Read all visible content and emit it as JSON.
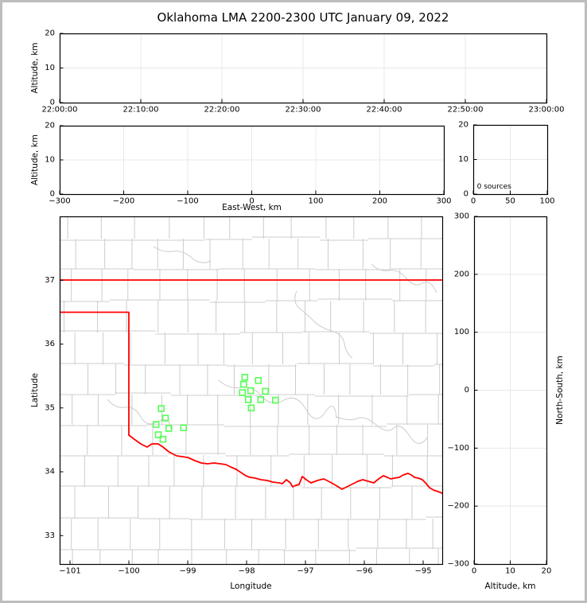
{
  "title": "Oklahoma LMA 2200-2300 UTC January 09, 2022",
  "colors": {
    "state_border": "#ff0000",
    "station_marker": "#55ff55",
    "county_lines": "#cccccc",
    "gridlines": "#e8e8e8",
    "axis": "#000000",
    "page_border": "#bdbdbd"
  },
  "chart_data": [
    {
      "id": "time",
      "type": "scatter",
      "description": "Altitude vs time panel, no lightning sources plotted",
      "xlabel": "",
      "ylabel": "Altitude, km",
      "xlim": [
        0,
        6
      ],
      "xtick_vals": [
        0,
        1,
        2,
        3,
        4,
        5,
        6
      ],
      "xtick_labels": [
        "22:00:00",
        "22:10:00",
        "22:20:00",
        "22:30:00",
        "22:40:00",
        "22:50:00",
        "23:00:00"
      ],
      "ylim": [
        0,
        20
      ],
      "ytick_vals": [
        0,
        10,
        20
      ],
      "ytick_labels": [
        "0",
        "10",
        "20"
      ],
      "grid": true,
      "points": []
    },
    {
      "id": "ew",
      "type": "scatter",
      "description": "Altitude vs East-West distance panel, no sources plotted",
      "xlabel": "East-West, km",
      "ylabel": "Altitude, km",
      "xlim": [
        -300,
        300
      ],
      "xtick_vals": [
        -300,
        -200,
        -100,
        0,
        100,
        200,
        300
      ],
      "xtick_labels": [
        "−300",
        "−200",
        "−100",
        "0",
        "100",
        "200",
        "300"
      ],
      "ylim": [
        0,
        20
      ],
      "ytick_vals": [
        0,
        10,
        20
      ],
      "ytick_labels": [
        "0",
        "10",
        "20"
      ],
      "grid": true,
      "points": []
    },
    {
      "id": "hist",
      "type": "scatter",
      "description": "Source-count vs altitude histogram panel",
      "xlabel": "",
      "ylabel": "",
      "xlim": [
        0,
        100
      ],
      "xtick_vals": [
        0,
        50,
        100
      ],
      "xtick_labels": [
        "0",
        "50",
        "100"
      ],
      "ylim": [
        0,
        20
      ],
      "ytick_vals": [
        0,
        10,
        20
      ],
      "ytick_labels": [
        "0",
        "10",
        "20"
      ],
      "grid": true,
      "annotation": {
        "text": "0 sources",
        "x": 5,
        "y": 2.1
      },
      "points": []
    },
    {
      "id": "map",
      "type": "scatter",
      "description": "Plan-view map of Oklahoma with county outlines, red state border and green LMA station markers",
      "xlabel": "Longitude",
      "ylabel": "Latitude",
      "xlim": [
        -101.176,
        -94.676
      ],
      "xtick_vals": [
        -101,
        -100,
        -99,
        -98,
        -97,
        -96,
        -95
      ],
      "xtick_labels": [
        "−101",
        "−100",
        "−99",
        "−98",
        "−97",
        "−96",
        "−95"
      ],
      "ylim": [
        32.555,
        38.0
      ],
      "ytick_vals": [
        33,
        34,
        35,
        36,
        37
      ],
      "ytick_labels": [
        "33",
        "34",
        "35",
        "36",
        "37"
      ],
      "grid": false,
      "points": [],
      "stations": [
        {
          "lon": -99.45,
          "lat": 34.99
        },
        {
          "lon": -99.38,
          "lat": 34.84
        },
        {
          "lon": -99.54,
          "lat": 34.74
        },
        {
          "lon": -99.32,
          "lat": 34.68
        },
        {
          "lon": -99.07,
          "lat": 34.69
        },
        {
          "lon": -99.5,
          "lat": 34.58
        },
        {
          "lon": -99.42,
          "lat": 34.51
        },
        {
          "lon": -98.03,
          "lat": 35.48
        },
        {
          "lon": -97.8,
          "lat": 35.43
        },
        {
          "lon": -98.05,
          "lat": 35.37
        },
        {
          "lon": -97.93,
          "lat": 35.27
        },
        {
          "lon": -98.07,
          "lat": 35.24
        },
        {
          "lon": -97.68,
          "lat": 35.26
        },
        {
          "lon": -97.97,
          "lat": 35.13
        },
        {
          "lon": -97.76,
          "lat": 35.13
        },
        {
          "lon": -97.51,
          "lat": 35.12
        },
        {
          "lon": -97.92,
          "lat": 35.0
        }
      ]
    },
    {
      "id": "ns",
      "type": "scatter",
      "description": "North-South distance vs altitude panel, no sources plotted",
      "xlabel": "Altitude, km",
      "ylabel": "North-South, km",
      "ylabel_side": "right",
      "xlim": [
        0,
        20
      ],
      "xtick_vals": [
        0,
        10,
        20
      ],
      "xtick_labels": [
        "0",
        "10",
        "20"
      ],
      "ylim": [
        -300,
        300
      ],
      "ytick_vals": [
        -300,
        -200,
        -100,
        0,
        100,
        200,
        300
      ],
      "ytick_labels": [
        "−300",
        "−200",
        "−100",
        "0",
        "100",
        "200",
        "300"
      ],
      "grid": true,
      "points": []
    }
  ]
}
